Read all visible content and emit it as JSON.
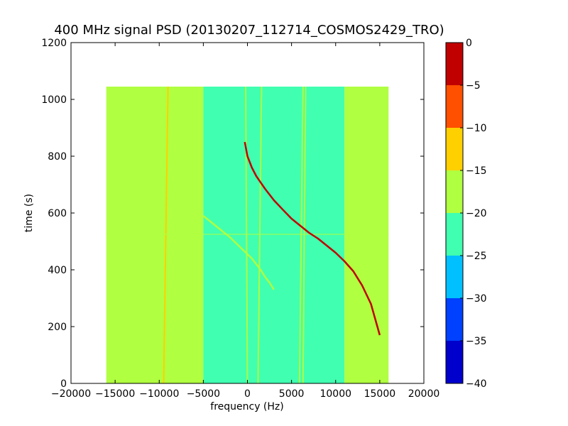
{
  "chart_data": {
    "type": "heatmap",
    "title": "400 MHz signal PSD (20130207_112714_COSMOS2429_TRO)",
    "xlabel": "frequency (Hz)",
    "ylabel": "time (s)",
    "xlim": [
      -20000,
      20000
    ],
    "ylim": [
      0,
      1200
    ],
    "xticks": [
      -20000,
      -15000,
      -10000,
      -5000,
      0,
      5000,
      10000,
      15000,
      20000
    ],
    "xtick_labels": [
      "−20000",
      "−15000",
      "−10000",
      "−5000",
      "0",
      "5000",
      "10000",
      "15000",
      "20000"
    ],
    "yticks": [
      0,
      200,
      400,
      600,
      800,
      1000,
      1200
    ],
    "ytick_labels": [
      "0",
      "200",
      "400",
      "600",
      "800",
      "1000",
      "1200"
    ],
    "data_extent": {
      "x": [
        -16000,
        16000
      ],
      "y": [
        0,
        1045
      ]
    },
    "colorbar": {
      "bounds": [
        -40,
        -35,
        -30,
        -25,
        -20,
        -15,
        -10,
        -5,
        0
      ],
      "tick_labels": [
        "−40",
        "−35",
        "−30",
        "−25",
        "−20",
        "−15",
        "−10",
        "−5",
        "0"
      ],
      "colors": [
        "#0000cc",
        "#0040ff",
        "#00c0ff",
        "#40ffb0",
        "#b0ff40",
        "#ffd000",
        "#ff5000",
        "#c00000"
      ]
    },
    "background_bands": [
      {
        "x": [
          -16000,
          -5000
        ],
        "level": -17.5
      },
      {
        "x": [
          -5000,
          11000
        ],
        "level": -22.5
      },
      {
        "x": [
          11000,
          16000
        ],
        "level": -17.5
      }
    ],
    "vertical_lines": [
      {
        "x0": -9500,
        "x1": -9000,
        "level": -10
      },
      {
        "x0": -8700,
        "x1": -8400,
        "level": -17.5
      },
      {
        "x0": 0,
        "x1": -200,
        "level": -17.5
      },
      {
        "x0": 1200,
        "x1": 1600,
        "level": -17.5
      },
      {
        "x0": 5900,
        "x1": 6300,
        "level": -17.5
      },
      {
        "x0": 6300,
        "x1": 6600,
        "level": -17.5
      }
    ],
    "horizontal_lines": [
      {
        "y": 525,
        "level": -17.5
      }
    ],
    "series": [
      {
        "level": -2.5,
        "x": [
          -300,
          0,
          500,
          1000,
          2000,
          3000,
          4000,
          5000,
          6000,
          7000,
          8000,
          9000,
          10000,
          11000,
          12000,
          13000,
          14000,
          15000
        ],
        "y": [
          850,
          800,
          760,
          730,
          685,
          645,
          612,
          580,
          555,
          530,
          510,
          485,
          460,
          430,
          395,
          345,
          280,
          170
        ]
      },
      {
        "level": -17.5,
        "x": [
          -5000,
          -4000,
          -3000,
          -2000,
          -1000,
          0,
          500,
          1000,
          1500,
          2000,
          2500,
          3000
        ],
        "y": [
          590,
          565,
          540,
          515,
          485,
          455,
          440,
          420,
          400,
          375,
          355,
          330
        ]
      }
    ]
  }
}
